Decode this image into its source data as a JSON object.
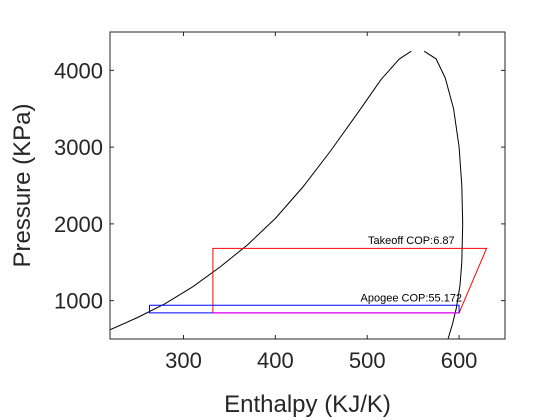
{
  "chart_data": {
    "type": "line",
    "xlabel": "Enthalpy (KJ/K)",
    "ylabel": "Pressure (KPa)",
    "xlim": [
      220,
      650
    ],
    "ylim": [
      500,
      4500
    ],
    "x_ticks": [
      300,
      400,
      500,
      600
    ],
    "y_ticks": [
      1000,
      2000,
      3000,
      4000
    ],
    "x_tick_labels": [
      "300",
      "400",
      "500",
      "600"
    ],
    "y_tick_labels": [
      "1000",
      "2000",
      "3000",
      "4000"
    ],
    "grid": false,
    "legend": "none",
    "series": [
      {
        "color": "#000000",
        "segments": [
          {
            "x": [
              220,
              250,
              280,
              310,
              340,
              370,
              400,
              430,
              460,
              490,
              515,
              535,
              548
            ],
            "y": [
              620,
              780,
              960,
              1180,
              1440,
              1730,
              2070,
              2480,
              2950,
              3450,
              3880,
              4150,
              4250
            ]
          },
          {
            "x": [
              562,
              575,
              585,
              594,
              600,
              603,
              604,
              603,
              601,
              597,
              593,
              588
            ],
            "y": [
              4250,
              4150,
              3900,
              3500,
              3000,
              2500,
              2000,
              1500,
              1200,
              900,
              700,
              500
            ]
          }
        ]
      },
      {
        "color": "#ff0000",
        "segments": [
          {
            "x": [
              332,
              332,
              630,
              600,
              332
            ],
            "y": [
              840,
              1680,
              1680,
              840,
              840
            ]
          }
        ]
      },
      {
        "color": "#0000ff",
        "segments": [
          {
            "x": [
              263,
              600,
              600,
              263,
              263
            ],
            "y": [
              940,
              940,
              840,
              840,
              940
            ]
          }
        ]
      },
      {
        "color": "#ff00ff",
        "segments": [
          {
            "x": [
              332,
              600
            ],
            "y": [
              840,
              840
            ]
          }
        ]
      }
    ],
    "annotations": [
      {
        "text": "Takeoff COP:6.87",
        "x": 548,
        "y": 1735
      },
      {
        "text": "Apogee COP:55.172",
        "x": 548,
        "y": 990
      }
    ]
  }
}
